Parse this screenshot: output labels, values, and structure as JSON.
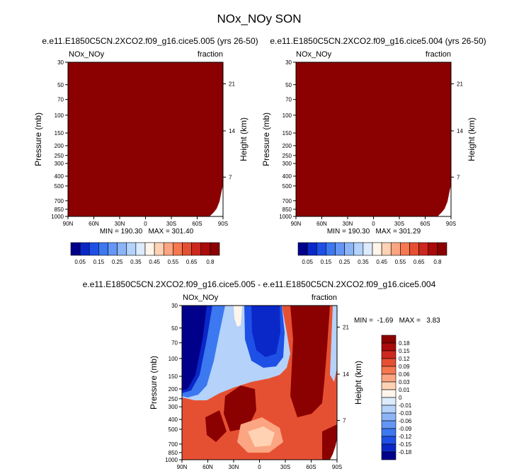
{
  "figure_title": "NOx_NOy SON",
  "chart_data": [
    {
      "type": "heatmap",
      "title": "e.e11.E1850C5CN.2XCO2.f09_g16.cice5.005 (yrs 26-50)",
      "left_label": "NOx_NOy",
      "right_label": "fraction",
      "ylabel": "Pressure (mb)",
      "y2label": "Height (km)",
      "x_ticks": [
        "90N",
        "60N",
        "30N",
        "0",
        "30S",
        "60S",
        "90S"
      ],
      "y_ticks": [
        "30",
        "50",
        "70",
        "100",
        "150",
        "200",
        "250",
        "300",
        "400",
        "500",
        "700",
        "850",
        "1000"
      ],
      "y2_ticks": [
        "21",
        "14",
        "7"
      ],
      "xlim": [
        90,
        -90
      ],
      "ylim": [
        1000,
        30
      ],
      "y_scale": "log",
      "fill": "#8b0000",
      "min_max": "MIN = 190.30   MAX = 301.40",
      "colorbar": {
        "colors": [
          "#00008b",
          "#0a28c8",
          "#1e50e6",
          "#3c78f0",
          "#6496f5",
          "#8cb4f7",
          "#b4d2fa",
          "#dcebfd",
          "#fff5eb",
          "#ffd2b4",
          "#fca582",
          "#f57850",
          "#e65032",
          "#cd281e",
          "#aa0a0a",
          "#8b0000"
        ],
        "labels": [
          "0.05",
          "0.15",
          "0.25",
          "0.35",
          "0.45",
          "0.55",
          "0.65",
          "0.8"
        ]
      }
    },
    {
      "type": "heatmap",
      "title": "e.e11.E1850C5CN.2XCO2.f09_g16.cice5.004 (yrs 26-50)",
      "left_label": "NOx_NOy",
      "right_label": "fraction",
      "ylabel": "Pressure (mb)",
      "y2label": "Height (km)",
      "x_ticks": [
        "90N",
        "60N",
        "30N",
        "0",
        "30S",
        "60S",
        "90S"
      ],
      "y_ticks": [
        "30",
        "50",
        "70",
        "100",
        "150",
        "200",
        "250",
        "300",
        "400",
        "500",
        "700",
        "850",
        "1000"
      ],
      "y2_ticks": [
        "21",
        "14",
        "7"
      ],
      "xlim": [
        90,
        -90
      ],
      "ylim": [
        1000,
        30
      ],
      "y_scale": "log",
      "fill": "#8b0000",
      "min_max": "MIN = 190.30   MAX = 301.29",
      "colorbar": {
        "colors": [
          "#00008b",
          "#0a28c8",
          "#1e50e6",
          "#3c78f0",
          "#6496f5",
          "#8cb4f7",
          "#b4d2fa",
          "#dcebfd",
          "#fff5eb",
          "#ffd2b4",
          "#fca582",
          "#f57850",
          "#e65032",
          "#cd281e",
          "#aa0a0a",
          "#8b0000"
        ],
        "labels": [
          "0.05",
          "0.15",
          "0.25",
          "0.35",
          "0.45",
          "0.55",
          "0.65",
          "0.8"
        ]
      }
    },
    {
      "type": "heatmap",
      "title": "e.e11.E1850C5CN.2XCO2.f09_g16.cice5.005 - e.e11.E1850C5CN.2XCO2.f09_g16.cice5.004",
      "left_label": "NOx_NOy",
      "right_label": "fraction",
      "ylabel": "Pressure (mb)",
      "y2label": "Height (km)",
      "x_ticks": [
        "90N",
        "60N",
        "30N",
        "0",
        "30S",
        "60S",
        "90S"
      ],
      "y_ticks": [
        "30",
        "50",
        "70",
        "100",
        "150",
        "200",
        "250",
        "300",
        "400",
        "500",
        "700",
        "850",
        "1000"
      ],
      "y2_ticks": [
        "21",
        "14",
        "7"
      ],
      "xlim": [
        90,
        -90
      ],
      "ylim": [
        1000,
        30
      ],
      "y_scale": "log",
      "min_max": "MIN =  -1.69   MAX =   3.83",
      "colorbar": {
        "colors": [
          "#00008b",
          "#0a28c8",
          "#1e50e6",
          "#3c78f0",
          "#6496f5",
          "#8cb4f7",
          "#b4d2fa",
          "#dcebfd",
          "#fff5eb",
          "#ffd2b4",
          "#fca582",
          "#f57850",
          "#e65032",
          "#cd281e",
          "#aa0a0a",
          "#8b0000"
        ],
        "labels": [
          "-0.18",
          "-0.15",
          "-0.12",
          "-0.09",
          "-0.06",
          "-0.03",
          "-0.01",
          "0",
          "0.01",
          "0.03",
          "0.06",
          "0.09",
          "0.12",
          "0.15",
          "0.18"
        ]
      }
    }
  ]
}
